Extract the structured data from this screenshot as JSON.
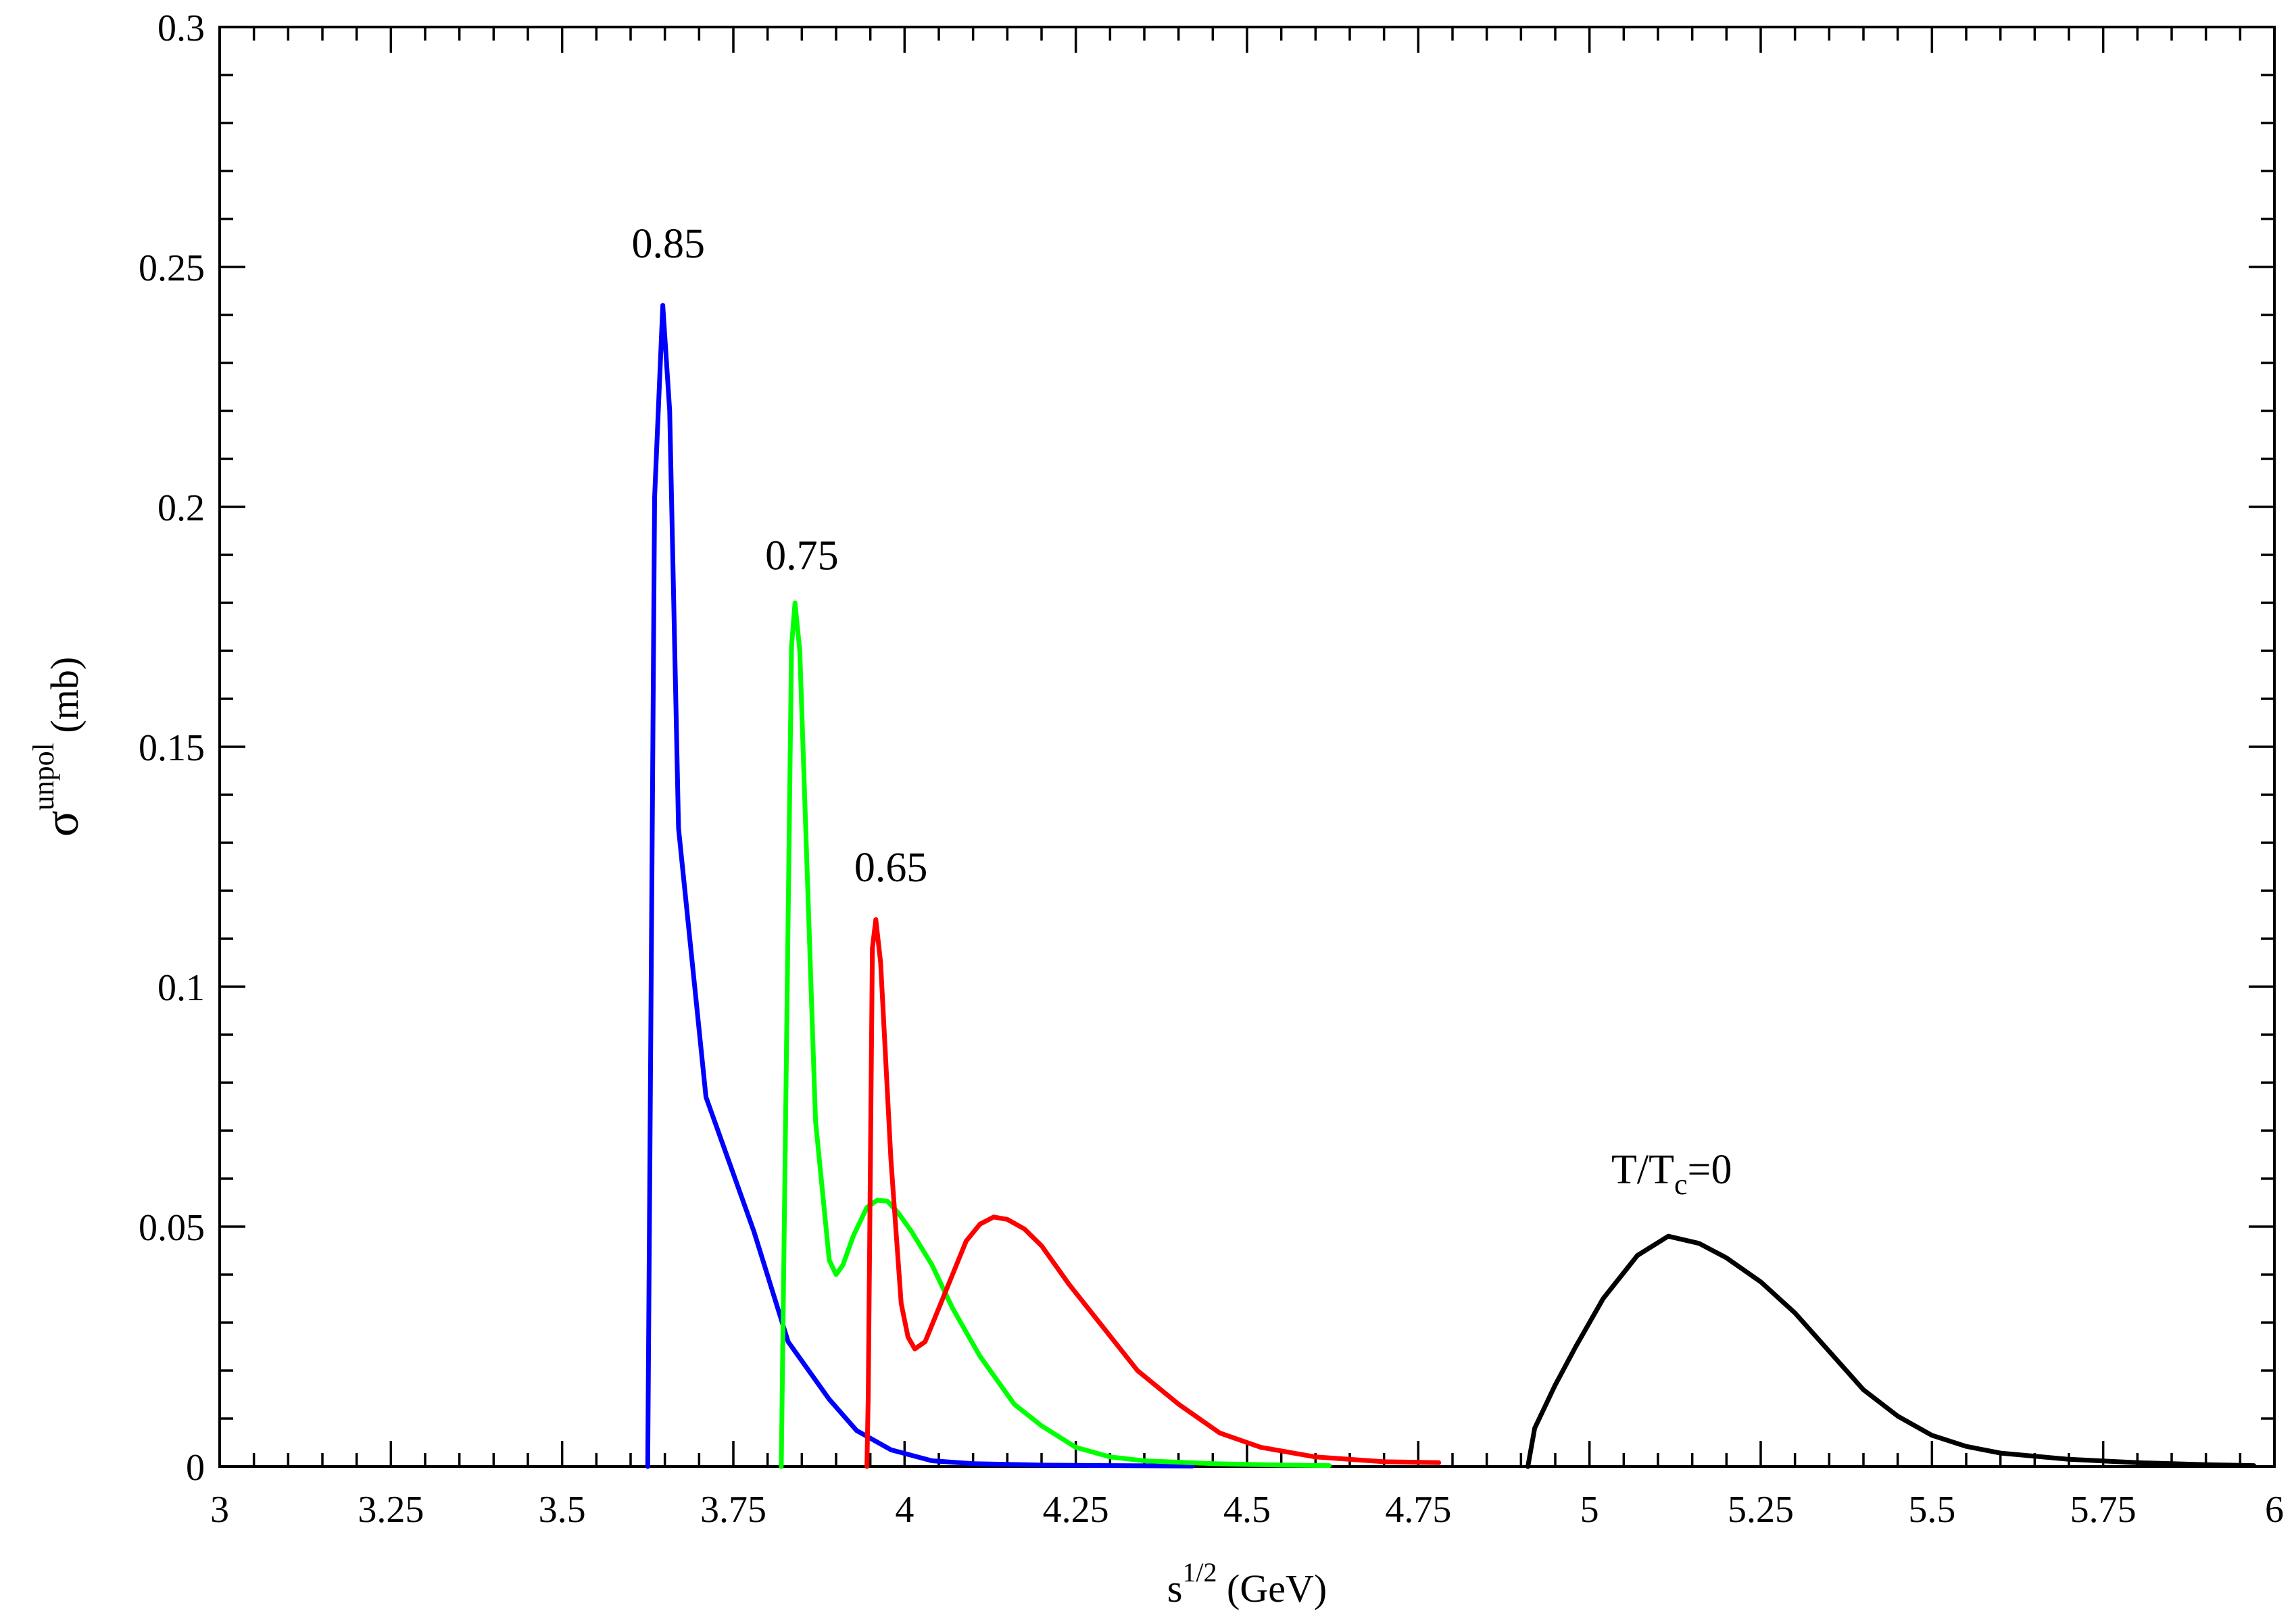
{
  "chart_data": {
    "type": "line",
    "xlim": [
      3,
      6
    ],
    "ylim": [
      0,
      0.3
    ],
    "grid": false,
    "x_ticks": [
      {
        "value": 3,
        "label": "3"
      },
      {
        "value": 3.25,
        "label": "3.25"
      },
      {
        "value": 3.5,
        "label": "3.5"
      },
      {
        "value": 3.75,
        "label": "3.75"
      },
      {
        "value": 4,
        "label": "4"
      },
      {
        "value": 4.25,
        "label": "4.25"
      },
      {
        "value": 4.5,
        "label": "4.5"
      },
      {
        "value": 4.75,
        "label": "4.75"
      },
      {
        "value": 5,
        "label": "5"
      },
      {
        "value": 5.25,
        "label": "5.25"
      },
      {
        "value": 5.5,
        "label": "5.5"
      },
      {
        "value": 5.75,
        "label": "5.75"
      },
      {
        "value": 6,
        "label": "6"
      }
    ],
    "y_ticks": [
      {
        "value": 0,
        "label": "0"
      },
      {
        "value": 0.05,
        "label": "0.05"
      },
      {
        "value": 0.1,
        "label": "0.1"
      },
      {
        "value": 0.15,
        "label": "0.15"
      },
      {
        "value": 0.2,
        "label": "0.2"
      },
      {
        "value": 0.25,
        "label": "0.25"
      },
      {
        "value": 0.3,
        "label": "0.3"
      }
    ],
    "xlabel": {
      "base": "s",
      "sup": "1/2",
      "rest": " (GeV)"
    },
    "ylabel": {
      "base": "σ",
      "sup": "unpol",
      "rest": " (mb)"
    },
    "series": [
      {
        "label": "0.85",
        "color": "#0000ff",
        "points": [
          [
            3.625,
            0
          ],
          [
            3.635,
            0.202
          ],
          [
            3.647,
            0.242
          ],
          [
            3.657,
            0.22
          ],
          [
            3.67,
            0.133
          ],
          [
            3.71,
            0.077
          ],
          [
            3.78,
            0.049
          ],
          [
            3.83,
            0.026
          ],
          [
            3.89,
            0.014
          ],
          [
            3.93,
            0.0075
          ],
          [
            3.98,
            0.0035
          ],
          [
            4.04,
            0.0012
          ],
          [
            4.1,
            0.0006
          ],
          [
            4.2,
            0.0003
          ],
          [
            4.3,
            0.0002
          ],
          [
            4.42,
            0.0001
          ]
        ]
      },
      {
        "label": "0.75",
        "color": "#00ff00",
        "points": [
          [
            3.82,
            0
          ],
          [
            3.827,
            0.08
          ],
          [
            3.835,
            0.171
          ],
          [
            3.84,
            0.18
          ],
          [
            3.847,
            0.17
          ],
          [
            3.87,
            0.072
          ],
          [
            3.89,
            0.043
          ],
          [
            3.9,
            0.04
          ],
          [
            3.91,
            0.042
          ],
          [
            3.925,
            0.048
          ],
          [
            3.945,
            0.054
          ],
          [
            3.96,
            0.0555
          ],
          [
            3.975,
            0.0553
          ],
          [
            3.99,
            0.053
          ],
          [
            4.01,
            0.049
          ],
          [
            4.04,
            0.042
          ],
          [
            4.07,
            0.033
          ],
          [
            4.11,
            0.023
          ],
          [
            4.16,
            0.013
          ],
          [
            4.2,
            0.0085
          ],
          [
            4.25,
            0.004
          ],
          [
            4.3,
            0.002
          ],
          [
            4.35,
            0.0012
          ],
          [
            4.45,
            0.0006
          ],
          [
            4.55,
            0.0003
          ],
          [
            4.62,
            0.0002
          ]
        ]
      },
      {
        "label": "0.65",
        "color": "#ff0000",
        "points": [
          [
            3.945,
            0
          ],
          [
            3.947,
            0.015
          ],
          [
            3.953,
            0.108
          ],
          [
            3.958,
            0.114
          ],
          [
            3.965,
            0.105
          ],
          [
            3.98,
            0.064
          ],
          [
            3.995,
            0.034
          ],
          [
            4.005,
            0.027
          ],
          [
            4.015,
            0.0245
          ],
          [
            4.03,
            0.026
          ],
          [
            4.05,
            0.033
          ],
          [
            4.09,
            0.047
          ],
          [
            4.11,
            0.0505
          ],
          [
            4.13,
            0.052
          ],
          [
            4.15,
            0.0515
          ],
          [
            4.175,
            0.0495
          ],
          [
            4.2,
            0.046
          ],
          [
            4.24,
            0.038
          ],
          [
            4.29,
            0.029
          ],
          [
            4.34,
            0.02
          ],
          [
            4.4,
            0.013
          ],
          [
            4.46,
            0.007
          ],
          [
            4.52,
            0.004
          ],
          [
            4.6,
            0.002
          ],
          [
            4.7,
            0.001
          ],
          [
            4.78,
            0.0008
          ]
        ]
      },
      {
        "label": "T/T",
        "label_sub": "c",
        "label_suffix": "=0",
        "color": "#000000",
        "points": [
          [
            4.91,
            0
          ],
          [
            4.92,
            0.008
          ],
          [
            4.95,
            0.017
          ],
          [
            4.98,
            0.025
          ],
          [
            5.02,
            0.035
          ],
          [
            5.07,
            0.044
          ],
          [
            5.115,
            0.048
          ],
          [
            5.16,
            0.0465
          ],
          [
            5.2,
            0.0435
          ],
          [
            5.25,
            0.0385
          ],
          [
            5.3,
            0.032
          ],
          [
            5.35,
            0.024
          ],
          [
            5.4,
            0.016
          ],
          [
            5.45,
            0.0105
          ],
          [
            5.5,
            0.0065
          ],
          [
            5.55,
            0.0042
          ],
          [
            5.6,
            0.0028
          ],
          [
            5.7,
            0.0015
          ],
          [
            5.8,
            0.0008
          ],
          [
            5.9,
            0.0004
          ],
          [
            5.97,
            0.0002
          ]
        ]
      }
    ],
    "annotations": [
      {
        "text": "0.85",
        "x": 3.655,
        "y": 0.252
      },
      {
        "text": "0.75",
        "x": 3.85,
        "y": 0.187
      },
      {
        "text": "0.65",
        "x": 3.98,
        "y": 0.122
      },
      {
        "text": "T/T",
        "sub": "c",
        "suffix": "=0",
        "x": 5.12,
        "y": 0.059
      }
    ]
  }
}
